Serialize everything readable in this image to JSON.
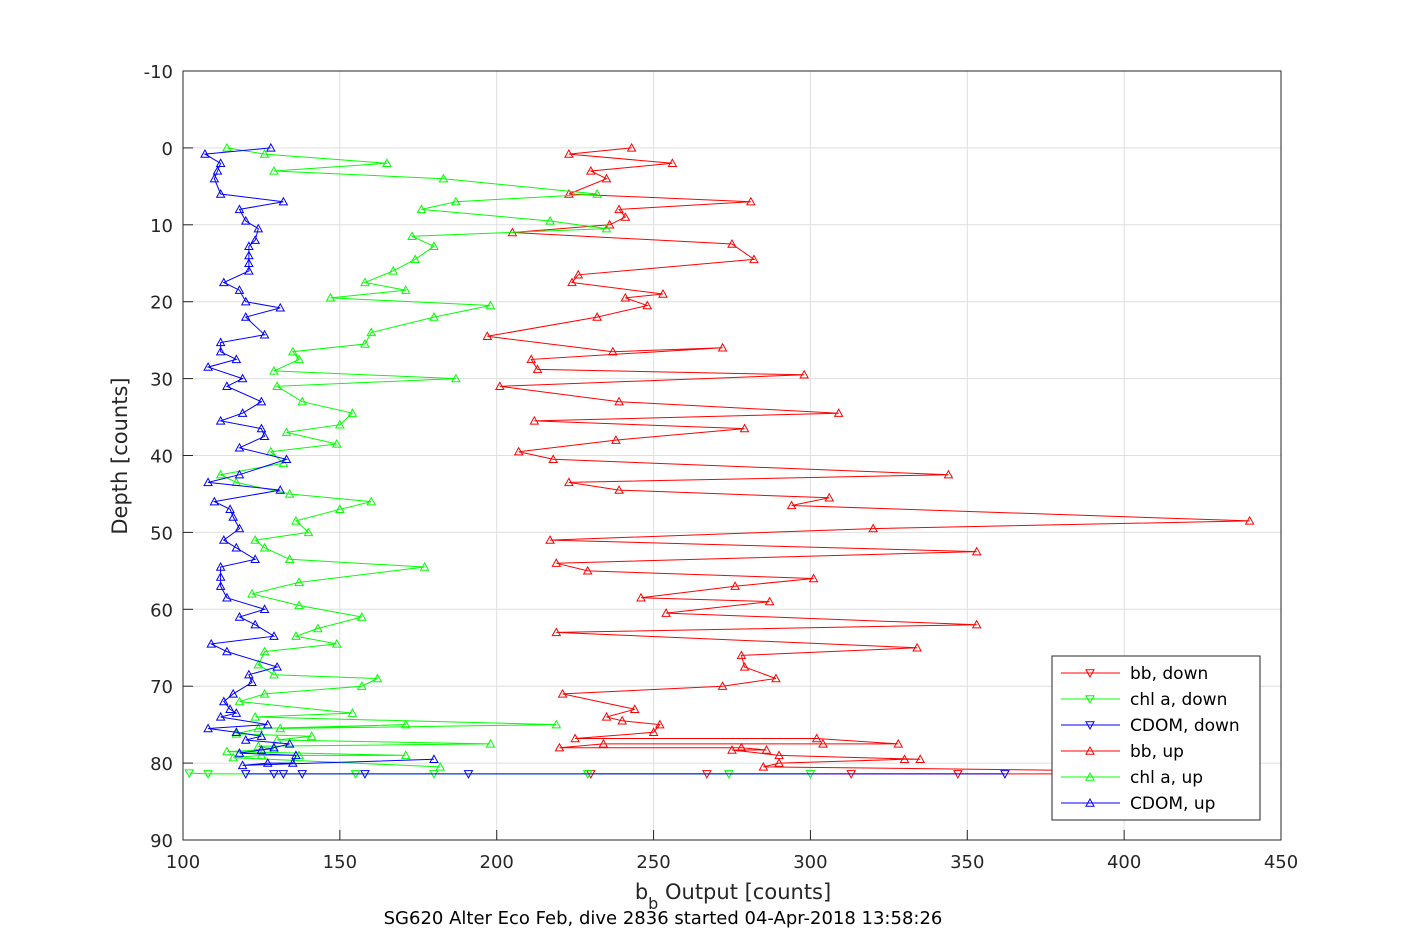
{
  "chart_data": {
    "type": "line",
    "title": "",
    "caption": "SG620 Alter Eco Feb, dive 2836 started 04-Apr-2018 13:58:26",
    "xlabel_main": "b",
    "xlabel_sub": "b",
    "xlabel_rest": " Output [counts]",
    "ylabel": "Depth [counts]",
    "xlim": [
      100,
      450
    ],
    "ylim": [
      -10,
      90
    ],
    "y_reversed": true,
    "grid": true,
    "legend_position": "lower-right",
    "xticks": [
      100,
      150,
      200,
      250,
      300,
      350,
      400,
      450
    ],
    "yticks": [
      -10,
      0,
      10,
      20,
      30,
      40,
      50,
      60,
      70,
      80,
      90
    ],
    "series": [
      {
        "name": "bb, down",
        "color": "#ff0000",
        "marker": "triangle-down",
        "points": [
          [
            230,
            81.4
          ],
          [
            267,
            81.4
          ],
          [
            313,
            81.4
          ],
          [
            347,
            81.4
          ],
          [
            380,
            81.4
          ],
          [
            420,
            81.4
          ],
          [
            440,
            81.4
          ]
        ]
      },
      {
        "name": "chl a, down",
        "color": "#00ff00",
        "marker": "triangle-down",
        "points": [
          [
            102,
            81.3
          ],
          [
            108,
            81.4
          ],
          [
            155,
            81.4
          ],
          [
            180,
            81.4
          ],
          [
            229,
            81.4
          ],
          [
            274,
            81.4
          ],
          [
            300,
            81.4
          ]
        ]
      },
      {
        "name": "CDOM, down",
        "color": "#0000ff",
        "marker": "triangle-down",
        "points": [
          [
            120,
            81.4
          ],
          [
            129,
            81.4
          ],
          [
            132,
            81.4
          ],
          [
            138,
            81.4
          ],
          [
            158,
            81.4
          ],
          [
            191,
            81.4
          ],
          [
            362,
            81.4
          ]
        ]
      },
      {
        "name": "bb, up",
        "color": "#ff0000",
        "marker": "triangle-up",
        "points": [
          [
            440,
            81.2
          ],
          [
            285,
            80.5
          ],
          [
            290,
            80
          ],
          [
            330,
            79.5
          ],
          [
            335,
            79.5
          ],
          [
            290,
            79
          ],
          [
            275,
            78.3
          ],
          [
            286,
            78.3
          ],
          [
            278,
            78
          ],
          [
            220,
            78
          ],
          [
            234,
            77.5
          ],
          [
            304,
            77.5
          ],
          [
            328,
            77.5
          ],
          [
            302,
            76.8
          ],
          [
            225,
            76.8
          ],
          [
            250,
            76
          ],
          [
            252,
            75
          ],
          [
            240,
            74.5
          ],
          [
            235,
            74
          ],
          [
            244,
            73
          ],
          [
            221,
            71
          ],
          [
            272,
            70
          ],
          [
            289,
            69
          ],
          [
            279,
            67.5
          ],
          [
            278,
            66
          ],
          [
            334,
            65
          ],
          [
            219,
            63
          ],
          [
            353,
            62
          ],
          [
            254,
            60.5
          ],
          [
            287,
            59
          ],
          [
            246,
            58.5
          ],
          [
            276,
            57
          ],
          [
            301,
            56
          ],
          [
            229,
            55
          ],
          [
            219,
            54
          ],
          [
            353,
            52.5
          ],
          [
            217,
            51
          ],
          [
            320,
            49.5
          ],
          [
            440,
            48.5
          ],
          [
            294,
            46.5
          ],
          [
            306,
            45.5
          ],
          [
            239,
            44.5
          ],
          [
            223,
            43.5
          ],
          [
            344,
            42.5
          ],
          [
            218,
            40.5
          ],
          [
            207,
            39.5
          ],
          [
            238,
            38
          ],
          [
            279,
            36.5
          ],
          [
            212,
            35.5
          ],
          [
            309,
            34.5
          ],
          [
            239,
            33
          ],
          [
            201,
            31
          ],
          [
            298,
            29.5
          ],
          [
            213,
            28.8
          ],
          [
            211,
            27.5
          ],
          [
            272,
            26
          ],
          [
            237,
            26.5
          ],
          [
            197,
            24.5
          ],
          [
            232,
            22
          ],
          [
            248,
            20.5
          ],
          [
            241,
            19.5
          ],
          [
            253,
            19
          ],
          [
            224,
            17.5
          ],
          [
            226,
            16.5
          ],
          [
            282,
            14.5
          ],
          [
            275,
            12.5
          ],
          [
            205,
            11
          ],
          [
            236,
            10
          ],
          [
            241,
            9
          ],
          [
            239,
            8
          ],
          [
            281,
            7
          ],
          [
            223,
            6
          ],
          [
            235,
            4
          ],
          [
            230,
            3
          ],
          [
            256,
            2
          ],
          [
            223,
            0.8
          ],
          [
            243,
            0
          ]
        ]
      },
      {
        "name": "chl a, up",
        "color": "#00ff00",
        "marker": "triangle-up",
        "points": [
          [
            182,
            80.5
          ],
          [
            116,
            79.3
          ],
          [
            125,
            79
          ],
          [
            137,
            79
          ],
          [
            171,
            79
          ],
          [
            114,
            78.5
          ],
          [
            129,
            78.2
          ],
          [
            124,
            77.8
          ],
          [
            198,
            77.5
          ],
          [
            130,
            77
          ],
          [
            141,
            76.5
          ],
          [
            117,
            76.2
          ],
          [
            124,
            75.5
          ],
          [
            171,
            75
          ],
          [
            131,
            75.5
          ],
          [
            219,
            75
          ],
          [
            123,
            74
          ],
          [
            154,
            73.5
          ],
          [
            118,
            72
          ],
          [
            126,
            71
          ],
          [
            157,
            70
          ],
          [
            162,
            69
          ],
          [
            129,
            68.5
          ],
          [
            124,
            67.2
          ],
          [
            126,
            65.5
          ],
          [
            149,
            64.5
          ],
          [
            136,
            63.5
          ],
          [
            143,
            62.5
          ],
          [
            157,
            61
          ],
          [
            137,
            59.5
          ],
          [
            122,
            58
          ],
          [
            137,
            56.5
          ],
          [
            177,
            54.5
          ],
          [
            134,
            53.5
          ],
          [
            126,
            52
          ],
          [
            123,
            51
          ],
          [
            140,
            50
          ],
          [
            136,
            48.5
          ],
          [
            150,
            47
          ],
          [
            160,
            46
          ],
          [
            134,
            45
          ],
          [
            117,
            43.5
          ],
          [
            112,
            42.5
          ],
          [
            132,
            41
          ],
          [
            128,
            39.5
          ],
          [
            149,
            38.5
          ],
          [
            133,
            37
          ],
          [
            150,
            36
          ],
          [
            154,
            34.5
          ],
          [
            138,
            33
          ],
          [
            130,
            31
          ],
          [
            187,
            30
          ],
          [
            129,
            29
          ],
          [
            137,
            27.5
          ],
          [
            135,
            26.5
          ],
          [
            158,
            25.5
          ],
          [
            160,
            24
          ],
          [
            180,
            22
          ],
          [
            198,
            20.5
          ],
          [
            147,
            19.5
          ],
          [
            171,
            18.5
          ],
          [
            158,
            17.5
          ],
          [
            167,
            16
          ],
          [
            174,
            14.5
          ],
          [
            180,
            12.8
          ],
          [
            173,
            11.5
          ],
          [
            235,
            10.5
          ],
          [
            217,
            9.5
          ],
          [
            176,
            8
          ],
          [
            187,
            7
          ],
          [
            232,
            6
          ],
          [
            183,
            4
          ],
          [
            129,
            3
          ],
          [
            165,
            2
          ],
          [
            126,
            0.8
          ],
          [
            114,
            0
          ]
        ]
      },
      {
        "name": "CDOM, up",
        "color": "#0000ff",
        "marker": "triangle-up",
        "points": [
          [
            180,
            79.5
          ],
          [
            119,
            80.3
          ],
          [
            127,
            80
          ],
          [
            135,
            80
          ],
          [
            136,
            79
          ],
          [
            118,
            78.7
          ],
          [
            125,
            78.3
          ],
          [
            129,
            78
          ],
          [
            134,
            77.5
          ],
          [
            120,
            77
          ],
          [
            125,
            76.5
          ],
          [
            117,
            76
          ],
          [
            108,
            75.5
          ],
          [
            127,
            75
          ],
          [
            112,
            74
          ],
          [
            117,
            73.5
          ],
          [
            115,
            73
          ],
          [
            113,
            72
          ],
          [
            116,
            71
          ],
          [
            122,
            69.5
          ],
          [
            121,
            68.5
          ],
          [
            130,
            67.5
          ],
          [
            114,
            65.5
          ],
          [
            109,
            64.5
          ],
          [
            129,
            63.5
          ],
          [
            123,
            62
          ],
          [
            118,
            61
          ],
          [
            126,
            60
          ],
          [
            114,
            58.5
          ],
          [
            112,
            57
          ],
          [
            112,
            55.8
          ],
          [
            112,
            54.5
          ],
          [
            123,
            53.5
          ],
          [
            117,
            52
          ],
          [
            113,
            51
          ],
          [
            118,
            49.5
          ],
          [
            116,
            48
          ],
          [
            115,
            47
          ],
          [
            110,
            46
          ],
          [
            131,
            44.5
          ],
          [
            108,
            43.5
          ],
          [
            118,
            42.5
          ],
          [
            133,
            40.5
          ],
          [
            118,
            39
          ],
          [
            126,
            37.5
          ],
          [
            125,
            36.5
          ],
          [
            112,
            35.5
          ],
          [
            119,
            34.5
          ],
          [
            125,
            33
          ],
          [
            114,
            31
          ],
          [
            119,
            30
          ],
          [
            108,
            28.5
          ],
          [
            117,
            27.5
          ],
          [
            112,
            26.5
          ],
          [
            112,
            25.3
          ],
          [
            126,
            24.3
          ],
          [
            120,
            22
          ],
          [
            131,
            20.8
          ],
          [
            120,
            20
          ],
          [
            118,
            18.5
          ],
          [
            113,
            17.5
          ],
          [
            121,
            16
          ],
          [
            121,
            15
          ],
          [
            121,
            14
          ],
          [
            121,
            12.8
          ],
          [
            123,
            12
          ],
          [
            124,
            10.5
          ],
          [
            120,
            9.5
          ],
          [
            118,
            8
          ],
          [
            132,
            7
          ],
          [
            112,
            6
          ],
          [
            110,
            4
          ],
          [
            111,
            3
          ],
          [
            112,
            2
          ],
          [
            107,
            0.8
          ],
          [
            128,
            0
          ]
        ]
      }
    ]
  }
}
